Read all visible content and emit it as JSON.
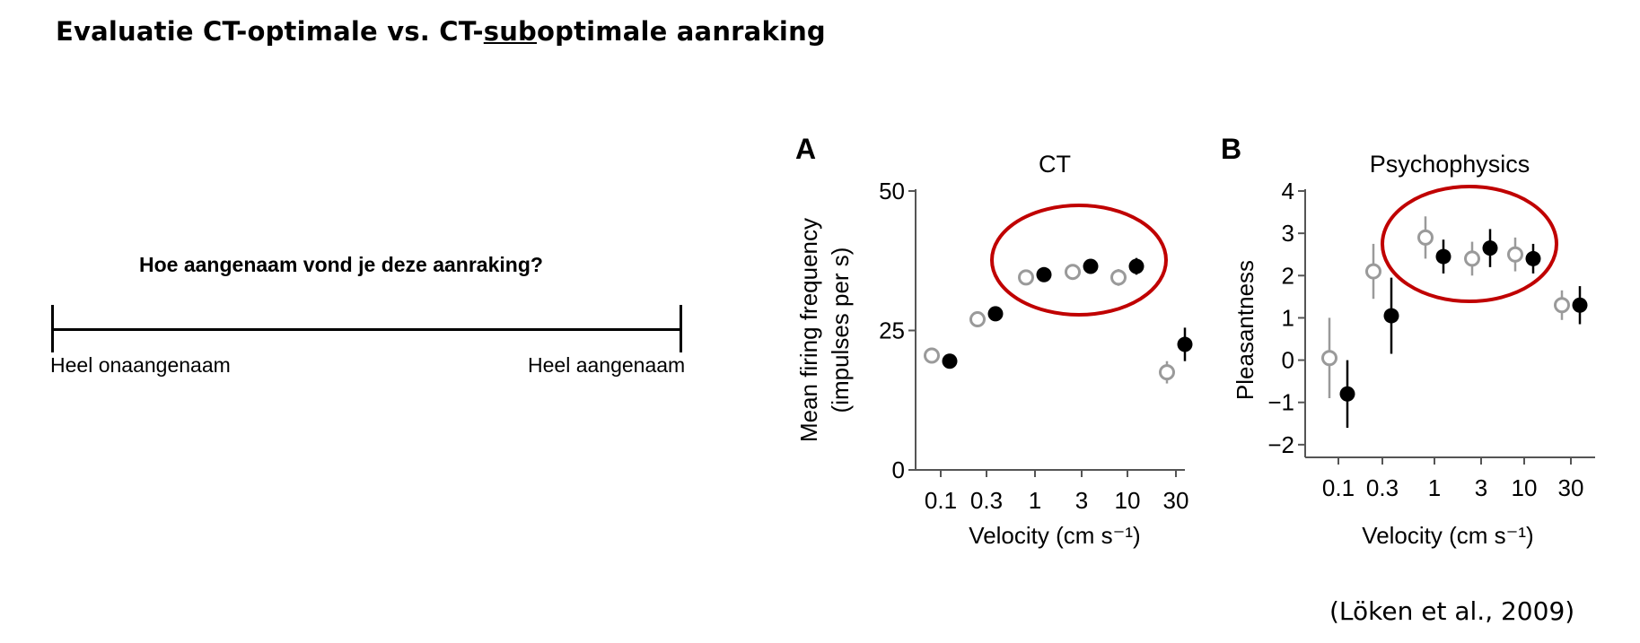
{
  "slide": {
    "title_before": "Evaluatie CT-optimale vs. CT-",
    "title_underlined": "sub",
    "title_after": "optimale aanraking",
    "question": "Hoe aangenaam vond je deze aanraking?",
    "scale_left": "Heel onaangenaam",
    "scale_right": "Heel aangenaam",
    "citation": "(Löken et al., 2009)"
  },
  "colors": {
    "open_marker": "#9a9a9a",
    "filled_marker": "#000000",
    "highlight_ellipse": "#c00000",
    "axis": "#555555"
  },
  "chart_data": [
    {
      "type": "scatter",
      "panel_label": "A",
      "title": "CT",
      "xlabel": "Velocity (cm s⁻¹)",
      "ylabel_line1": "Mean firing frequency",
      "ylabel_line2": "(impulses per s)",
      "x_ticks": [
        "0.1",
        "0.3",
        "1",
        "3",
        "10",
        "30"
      ],
      "y_ticks": [
        0,
        25,
        50
      ],
      "ylim": [
        0,
        50
      ],
      "series": [
        {
          "style": "open",
          "x": [
            "0.1",
            "0.3",
            "1",
            "3",
            "10",
            "30"
          ],
          "y": [
            20.5,
            27,
            34.5,
            35.5,
            34.5,
            17.5
          ],
          "err": [
            0.8,
            0.8,
            0.8,
            1,
            1.5,
            2
          ]
        },
        {
          "style": "filled",
          "x": [
            "0.1",
            "0.3",
            "1",
            "3",
            "10",
            "30"
          ],
          "y": [
            19.5,
            28,
            35,
            36.5,
            36.5,
            22.5
          ],
          "err": [
            0.5,
            0.5,
            0.5,
            1,
            1.5,
            3
          ]
        }
      ],
      "highlight": {
        "from": "1",
        "to": "10"
      }
    },
    {
      "type": "scatter",
      "panel_label": "B",
      "title": "Psychophysics",
      "xlabel": "Velocity (cm s⁻¹)",
      "ylabel_line1": "Pleasantness",
      "ylabel_line2": "",
      "x_ticks": [
        "0.1",
        "0.3",
        "1",
        "3",
        "10",
        "30"
      ],
      "y_ticks": [
        -2,
        -1,
        0,
        1,
        2,
        3,
        4
      ],
      "ylim": [
        -2.3,
        4
      ],
      "series": [
        {
          "style": "open",
          "x": [
            "0.1",
            "0.3",
            "1",
            "3",
            "10",
            "30"
          ],
          "y": [
            0.05,
            2.1,
            2.9,
            2.4,
            2.5,
            1.3
          ],
          "err": [
            0.95,
            0.65,
            0.5,
            0.4,
            0.4,
            0.35
          ]
        },
        {
          "style": "filled",
          "x": [
            "0.1",
            "0.3",
            "1",
            "3",
            "10",
            "30"
          ],
          "y": [
            -0.8,
            1.05,
            2.45,
            2.65,
            2.4,
            1.3
          ],
          "err": [
            0.8,
            0.9,
            0.4,
            0.45,
            0.35,
            0.45
          ]
        }
      ],
      "highlight": {
        "from": "1",
        "to": "10"
      }
    }
  ]
}
